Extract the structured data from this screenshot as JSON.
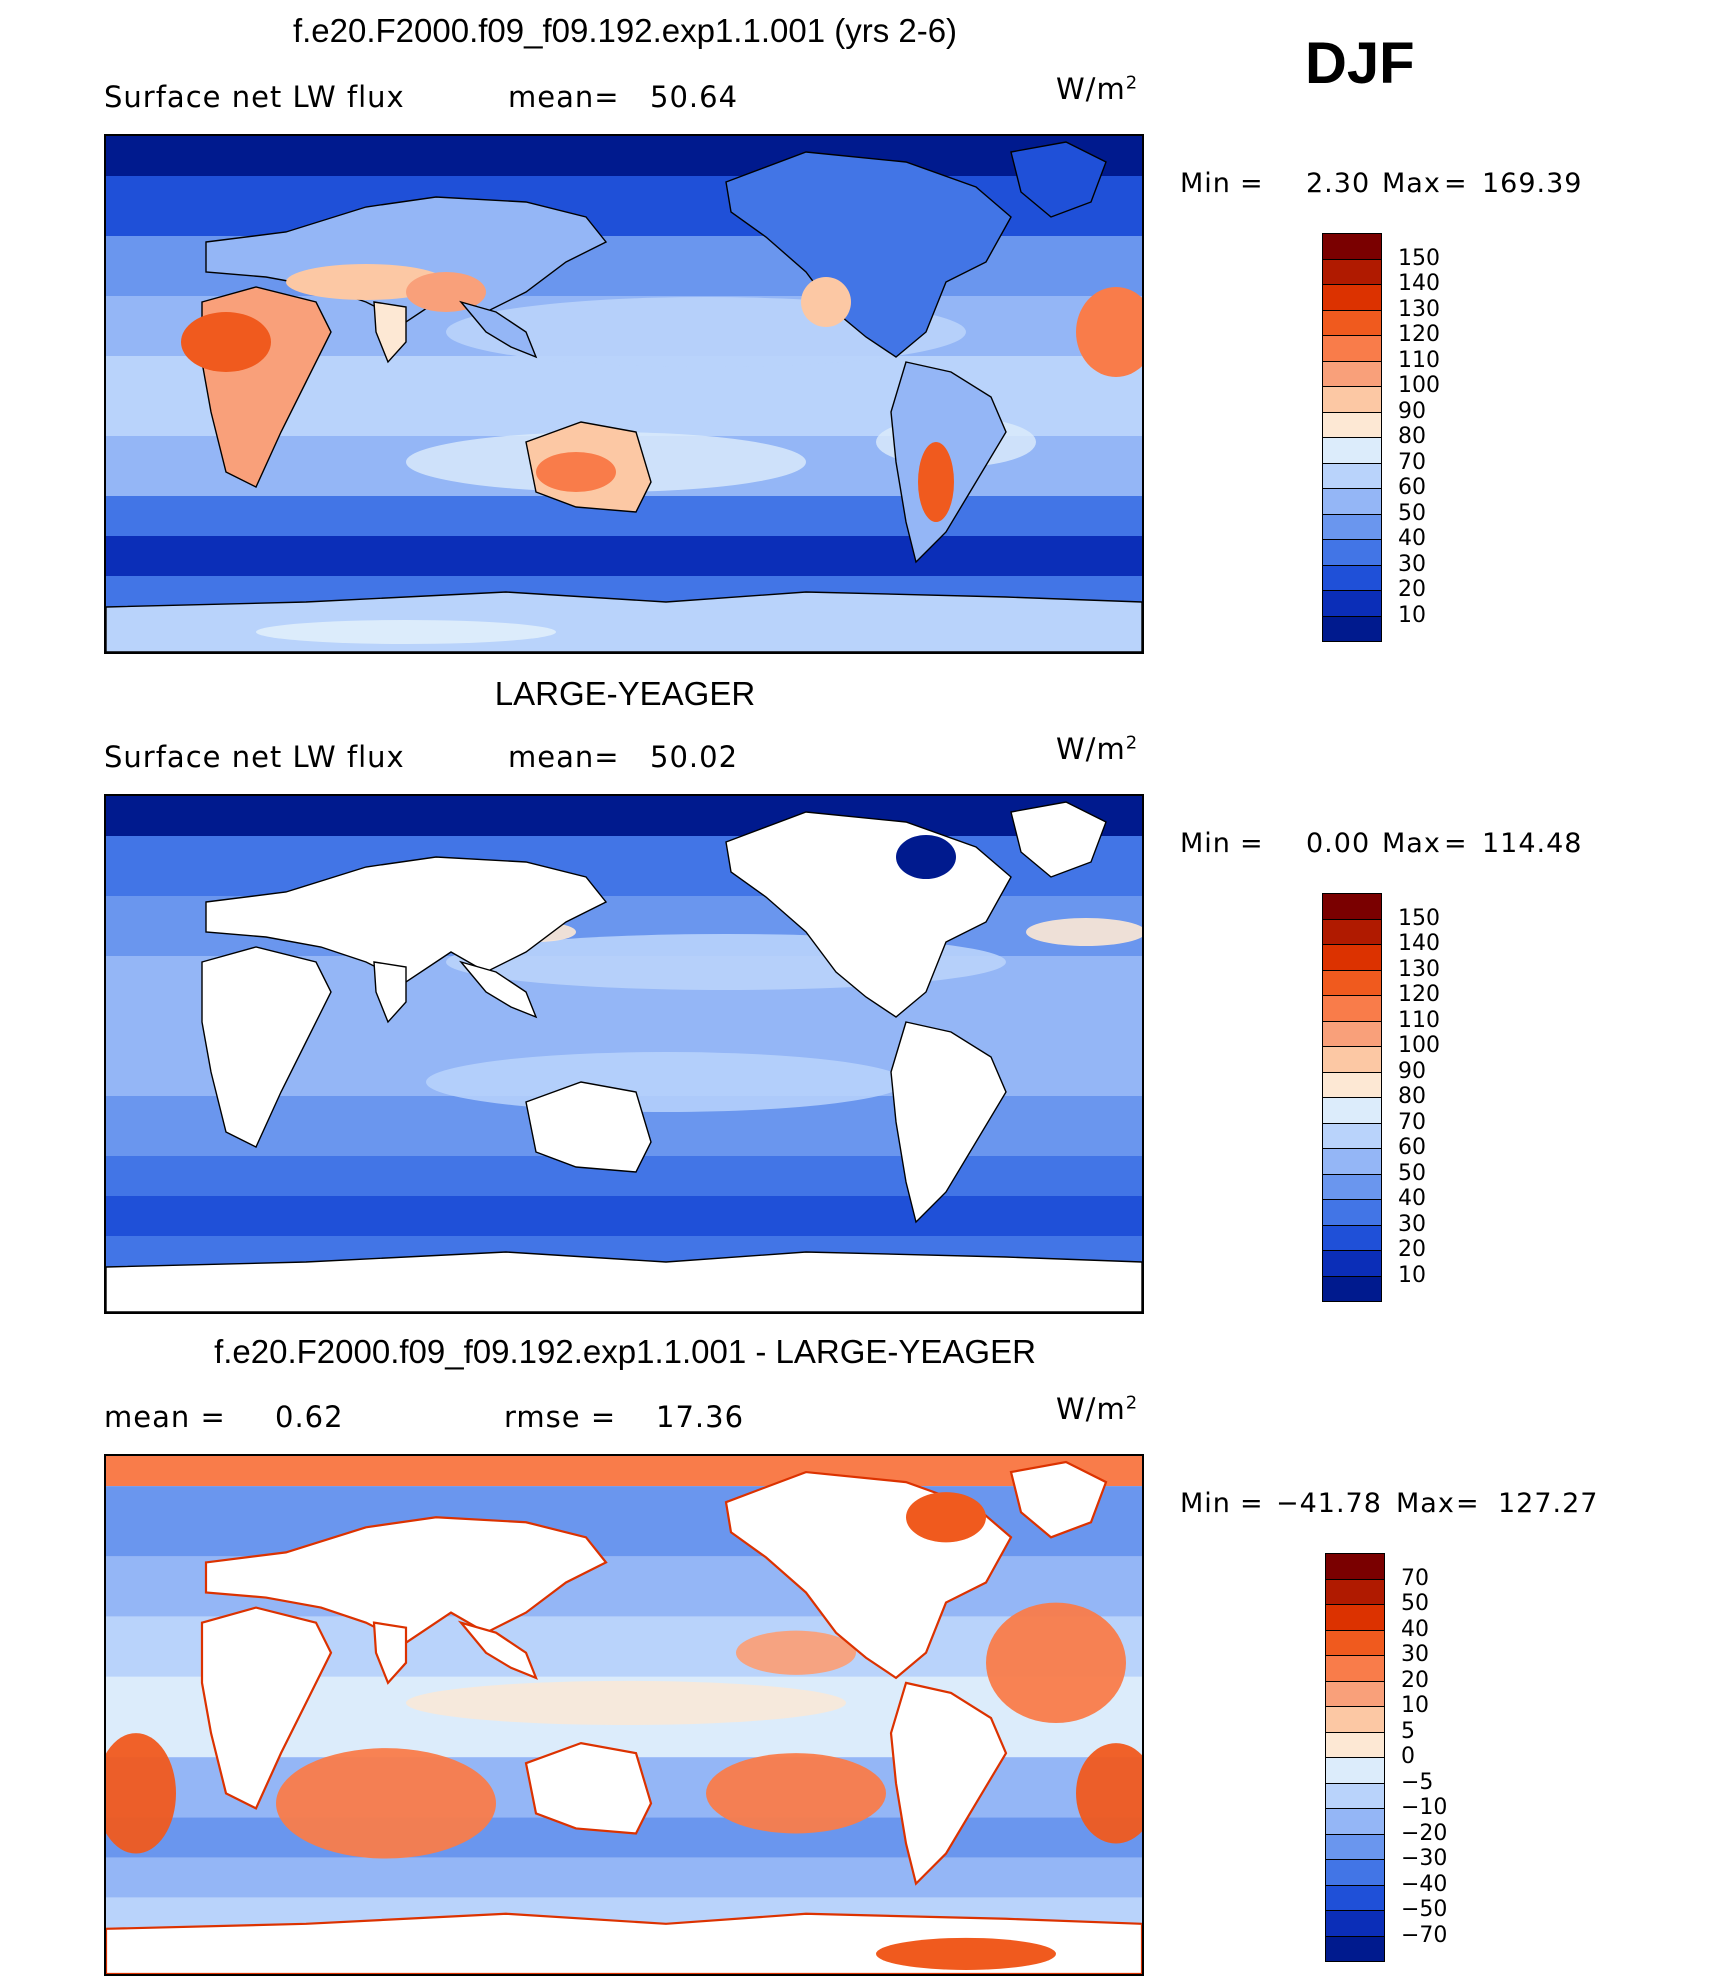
{
  "season": "DJF",
  "panels": [
    {
      "id": "model",
      "title": "f.e20.F2000.f09_f09.192.exp1.1.001 (yrs 2-6)",
      "left_label": "Surface net LW flux",
      "stat_label": "mean=",
      "stat_value": "50.64",
      "units_text": "W/m",
      "units_exp": "2",
      "min_label": "Min",
      "min_value": "2.30",
      "max_label": "Max",
      "max_value": "169.39",
      "ocean_only": false,
      "colorbar": {
        "labels": [
          "150",
          "140",
          "130",
          "120",
          "110",
          "100",
          "90",
          "80",
          "70",
          "60",
          "50",
          "40",
          "30",
          "20",
          "10"
        ],
        "colors": [
          "#7a0000",
          "#b01a00",
          "#dc3200",
          "#f05a1e",
          "#f97c4a",
          "#f9a07a",
          "#fcc8a4",
          "#fde8d4",
          "#dcecfb",
          "#b9d3fb",
          "#94b6f6",
          "#6a96ee",
          "#4275e6",
          "#1f50d8",
          "#0b2eb8",
          "#001a8e"
        ]
      }
    },
    {
      "id": "obs",
      "title": "LARGE-YEAGER",
      "left_label": "Surface net LW flux",
      "stat_label": "mean=",
      "stat_value": "50.02",
      "units_text": "W/m",
      "units_exp": "2",
      "min_label": "Min",
      "min_value": "0.00",
      "max_label": "Max",
      "max_value": "114.48",
      "ocean_only": true,
      "colorbar": {
        "labels": [
          "150",
          "140",
          "130",
          "120",
          "110",
          "100",
          "90",
          "80",
          "70",
          "60",
          "50",
          "40",
          "30",
          "20",
          "10"
        ],
        "colors": [
          "#7a0000",
          "#b01a00",
          "#dc3200",
          "#f05a1e",
          "#f97c4a",
          "#f9a07a",
          "#fcc8a4",
          "#fde8d4",
          "#dcecfb",
          "#b9d3fb",
          "#94b6f6",
          "#6a96ee",
          "#4275e6",
          "#1f50d8",
          "#0b2eb8",
          "#001a8e"
        ]
      }
    },
    {
      "id": "diff",
      "title": "f.e20.F2000.f09_f09.192.exp1.1.001 - LARGE-YEAGER",
      "left_label": "mean =",
      "left_value": "0.62",
      "stat_label": "rmse =",
      "stat_value": "17.36",
      "units_text": "W/m",
      "units_exp": "2",
      "min_label": "Min",
      "min_value": "−41.78",
      "max_label": "Max",
      "max_value": "127.27",
      "ocean_only": true,
      "colorbar": {
        "labels": [
          "70",
          "50",
          "40",
          "30",
          "20",
          "10",
          "5",
          "0",
          "−5",
          "−10",
          "−20",
          "−30",
          "−40",
          "−50",
          "−70"
        ],
        "colors": [
          "#7a0000",
          "#b01a00",
          "#dc3200",
          "#f05a1e",
          "#f97c4a",
          "#f9a07a",
          "#fcc8a4",
          "#fde8d4",
          "#dcecfb",
          "#b9d3fb",
          "#94b6f6",
          "#6a96ee",
          "#4275e6",
          "#1f50d8",
          "#0b2eb8",
          "#001a8e"
        ]
      }
    }
  ]
}
